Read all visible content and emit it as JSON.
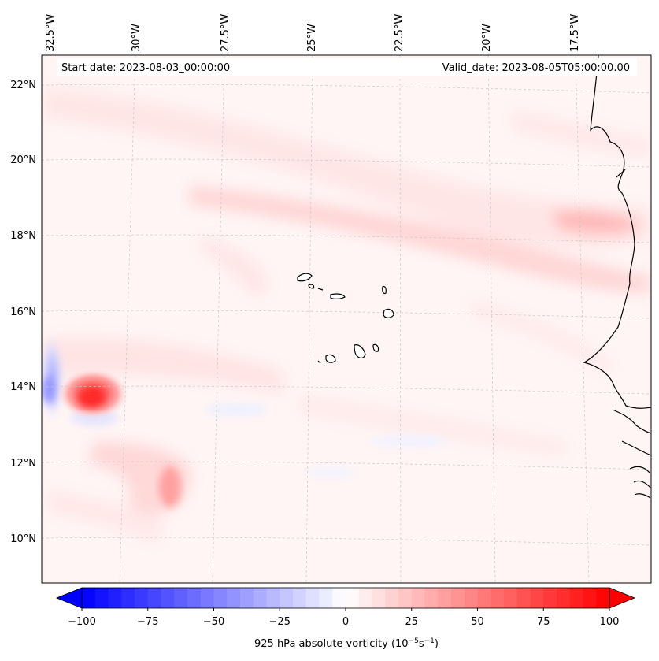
{
  "header": {
    "start_date": "Start date: 2023-08-03_00:00:00",
    "valid_date": "Valid_date: 2023-08-05T05:00:00.00"
  },
  "longitude_labels": [
    "32.5°W",
    "30°W",
    "27.5°W",
    "25°W",
    "22.5°W",
    "20°W",
    "17.5°W"
  ],
  "latitude_labels": [
    "22°N",
    "20°N",
    "18°N",
    "16°N",
    "14°N",
    "12°N",
    "10°N"
  ],
  "colorbar": {
    "label_prefix": "925 hPa absolute vorticity (10",
    "label_exp1": "−5",
    "label_mid": "s",
    "label_exp2": "−1",
    "label_suffix": ")",
    "ticks": [
      "−100",
      "−75",
      "−50",
      "−25",
      "0",
      "25",
      "50",
      "75",
      "100"
    ],
    "min": -100,
    "max": 100,
    "levels": 40,
    "negative_color": "#0000ff",
    "positive_color": "#ff0000"
  },
  "colors": {
    "coast": "#000000",
    "grid": "#c8c8c8",
    "background_tint": "#fff4f4"
  }
}
